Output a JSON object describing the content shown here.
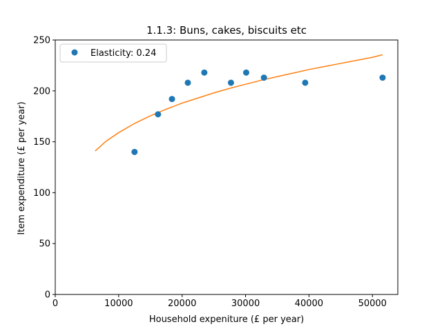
{
  "chart_data": {
    "type": "scatter",
    "title": "1.1.3: Buns, cakes, biscuits etc",
    "xlabel": "Household expeniture (£ per year)",
    "ylabel": "Item expenditure (£ per year)",
    "xlim": [
      0,
      54000
    ],
    "ylim": [
      0,
      250
    ],
    "xticks": [
      0,
      10000,
      20000,
      30000,
      40000,
      50000
    ],
    "yticks": [
      0,
      50,
      100,
      150,
      200,
      250
    ],
    "xtick_labels": [
      "0",
      "10000",
      "20000",
      "30000",
      "40000",
      "50000"
    ],
    "ytick_labels": [
      "0",
      "50",
      "100",
      "150",
      "200",
      "250"
    ],
    "grid": false,
    "legend_position": "top-left",
    "series": [
      {
        "name": "Elasticity: 0.24",
        "kind": "scatter",
        "color": "#1f77b4",
        "x": [
          12500,
          16200,
          18400,
          20900,
          23500,
          27700,
          30100,
          32900,
          39400,
          51600
        ],
        "y": [
          140,
          177,
          192,
          208,
          218,
          208,
          218,
          213,
          208,
          213
        ]
      },
      {
        "kind": "line",
        "color": "#ff7f0e",
        "x": [
          6300,
          8000,
          10000,
          12500,
          15000,
          17500,
          20000,
          22500,
          25000,
          27500,
          30000,
          32500,
          35000,
          37500,
          40000,
          42500,
          45000,
          47500,
          50000,
          51600
        ],
        "y": [
          141,
          150.5,
          159,
          168,
          175.5,
          182,
          188,
          193,
          198,
          202.5,
          206.5,
          210.5,
          214,
          217.5,
          221,
          224,
          227,
          230,
          233,
          235.5
        ]
      }
    ]
  }
}
